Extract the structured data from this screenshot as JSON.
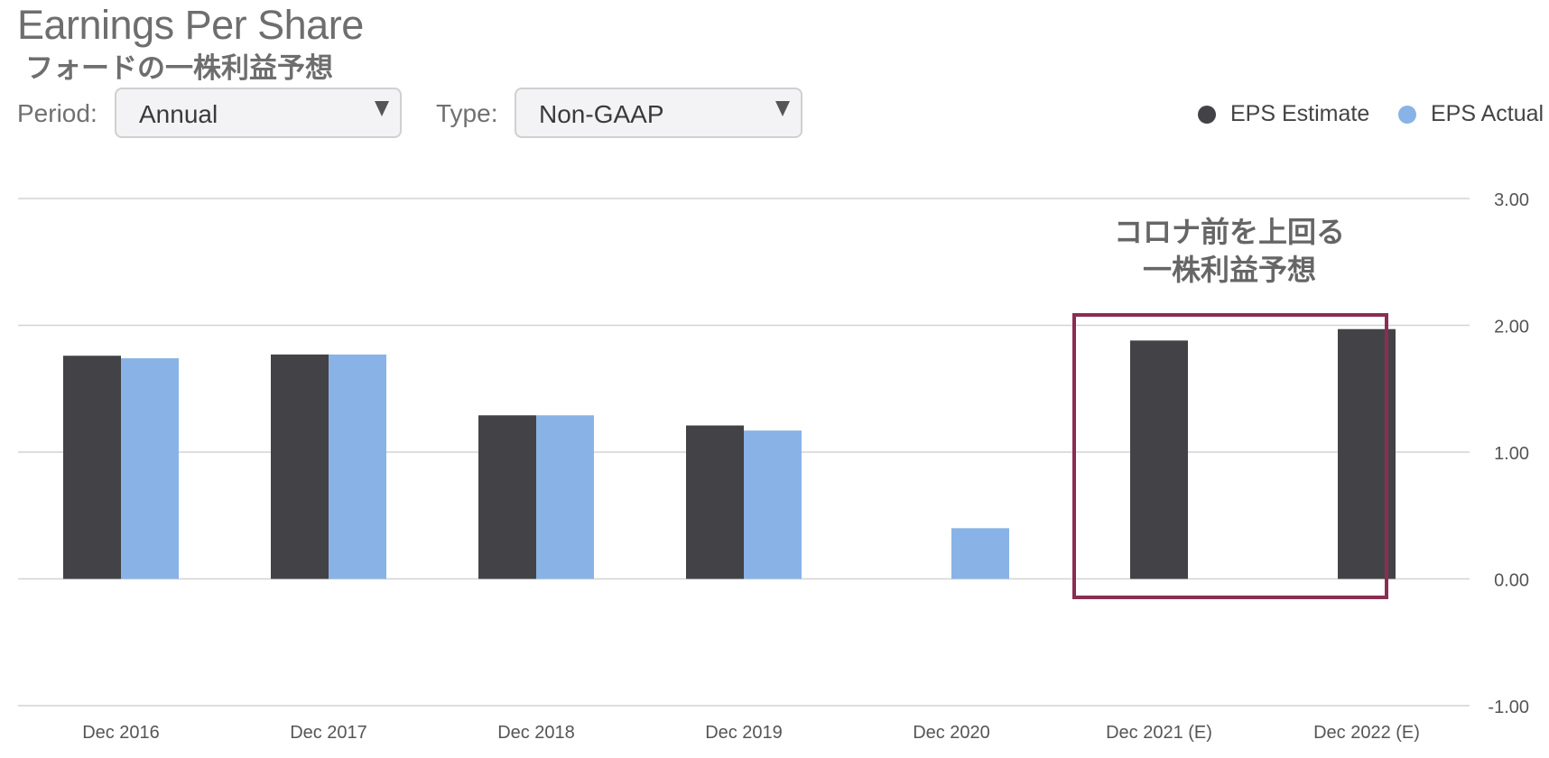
{
  "header": {
    "title": "Earnings Per Share",
    "subtitle": "フォードの一株利益予想"
  },
  "controls": {
    "period_label": "Period:",
    "period_value": "Annual",
    "type_label": "Type:",
    "type_value": "Non-GAAP"
  },
  "legend": {
    "estimate_label": "EPS Estimate",
    "actual_label": "EPS Actual"
  },
  "colors": {
    "estimate": "#434246",
    "actual": "#89b3e6",
    "highlight_box": "#8a2d52",
    "grid": "#d4d4d4"
  },
  "chart_data": {
    "type": "bar",
    "categories": [
      "Dec 2016",
      "Dec 2017",
      "Dec 2018",
      "Dec 2019",
      "Dec 2020",
      "Dec 2021 (E)",
      "Dec 2022 (E)"
    ],
    "series": [
      {
        "name": "EPS Estimate",
        "values": [
          1.76,
          1.77,
          1.29,
          1.21,
          null,
          1.88,
          1.97
        ]
      },
      {
        "name": "EPS Actual",
        "values": [
          1.74,
          1.77,
          1.29,
          1.17,
          0.4,
          null,
          null
        ]
      }
    ],
    "yticks": [
      "3.00",
      "2.00",
      "1.00",
      "0.00",
      "-1.00"
    ],
    "ylim": [
      -1,
      3
    ],
    "grid": true,
    "legend_position": "top-right",
    "annotation": {
      "line1": "コロナ前を上回る",
      "line2": "一株利益予想"
    }
  }
}
